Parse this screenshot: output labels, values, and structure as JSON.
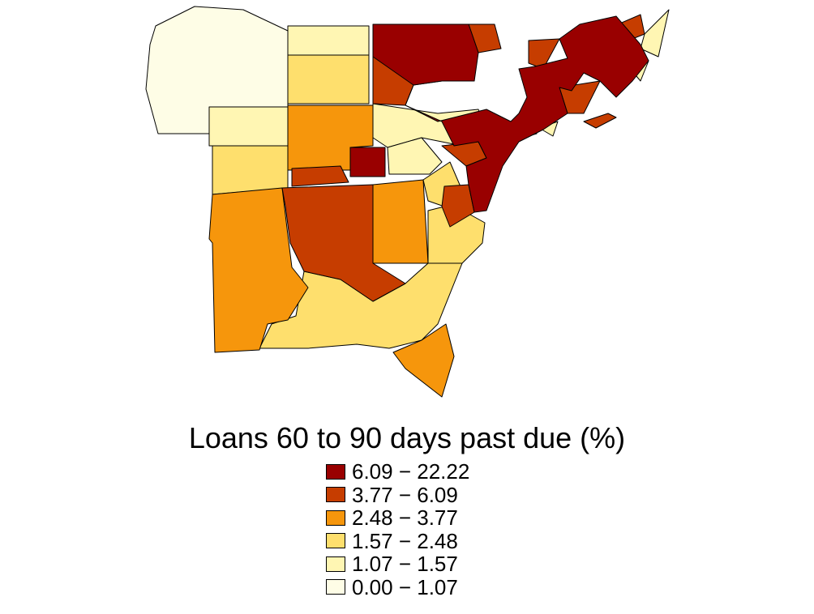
{
  "legend": {
    "title": "Loans 60 to 90 days past due (%)",
    "classes": [
      {
        "label": "6.09 − 22.22",
        "color": "#990000"
      },
      {
        "label": "3.77 − 6.09",
        "color": "#c63d00"
      },
      {
        "label": "2.48 − 3.77",
        "color": "#f6960c"
      },
      {
        "label": "1.57 − 2.48",
        "color": "#fedf6d"
      },
      {
        "label": "1.07 − 1.57",
        "color": "#fff6b3"
      },
      {
        "label": "0.00 − 1.07",
        "color": "#fefde6"
      }
    ]
  }
}
